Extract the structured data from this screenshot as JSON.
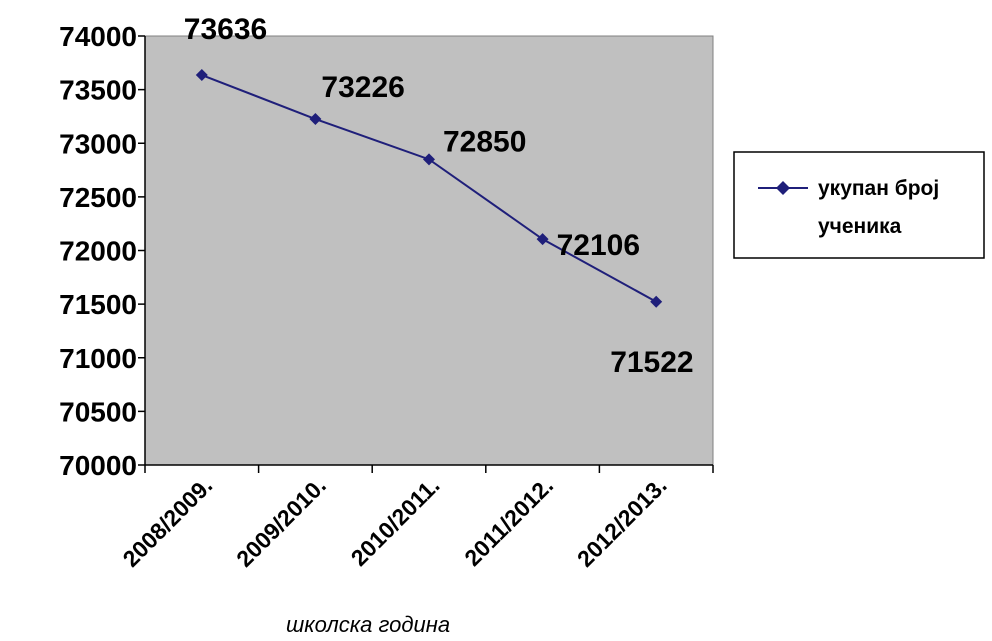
{
  "chart_data": {
    "type": "line",
    "title": "",
    "xlabel": "школска година",
    "ylabel": "",
    "categories": [
      "2008/2009.",
      "2009/2010.",
      "2010/2011.",
      "2011/2012.",
      "2012/2013."
    ],
    "series": [
      {
        "name": "укупан број ученика",
        "values": [
          73636,
          73226,
          72850,
          72106,
          71522
        ],
        "color": "#1F1F7A",
        "marker": "diamond"
      }
    ],
    "ylim": [
      70000,
      74000
    ],
    "yticks": [
      "70000",
      "70500",
      "71000",
      "71500",
      "72000",
      "72500",
      "73000",
      "73500",
      "74000"
    ],
    "data_labels": [
      "73636",
      "73226",
      "72850",
      "72106",
      "71522"
    ],
    "plot_background": "#C0C0C0",
    "grid": false,
    "legend": {
      "position": "right",
      "lines": [
        "укупан број",
        "ученика"
      ]
    }
  }
}
